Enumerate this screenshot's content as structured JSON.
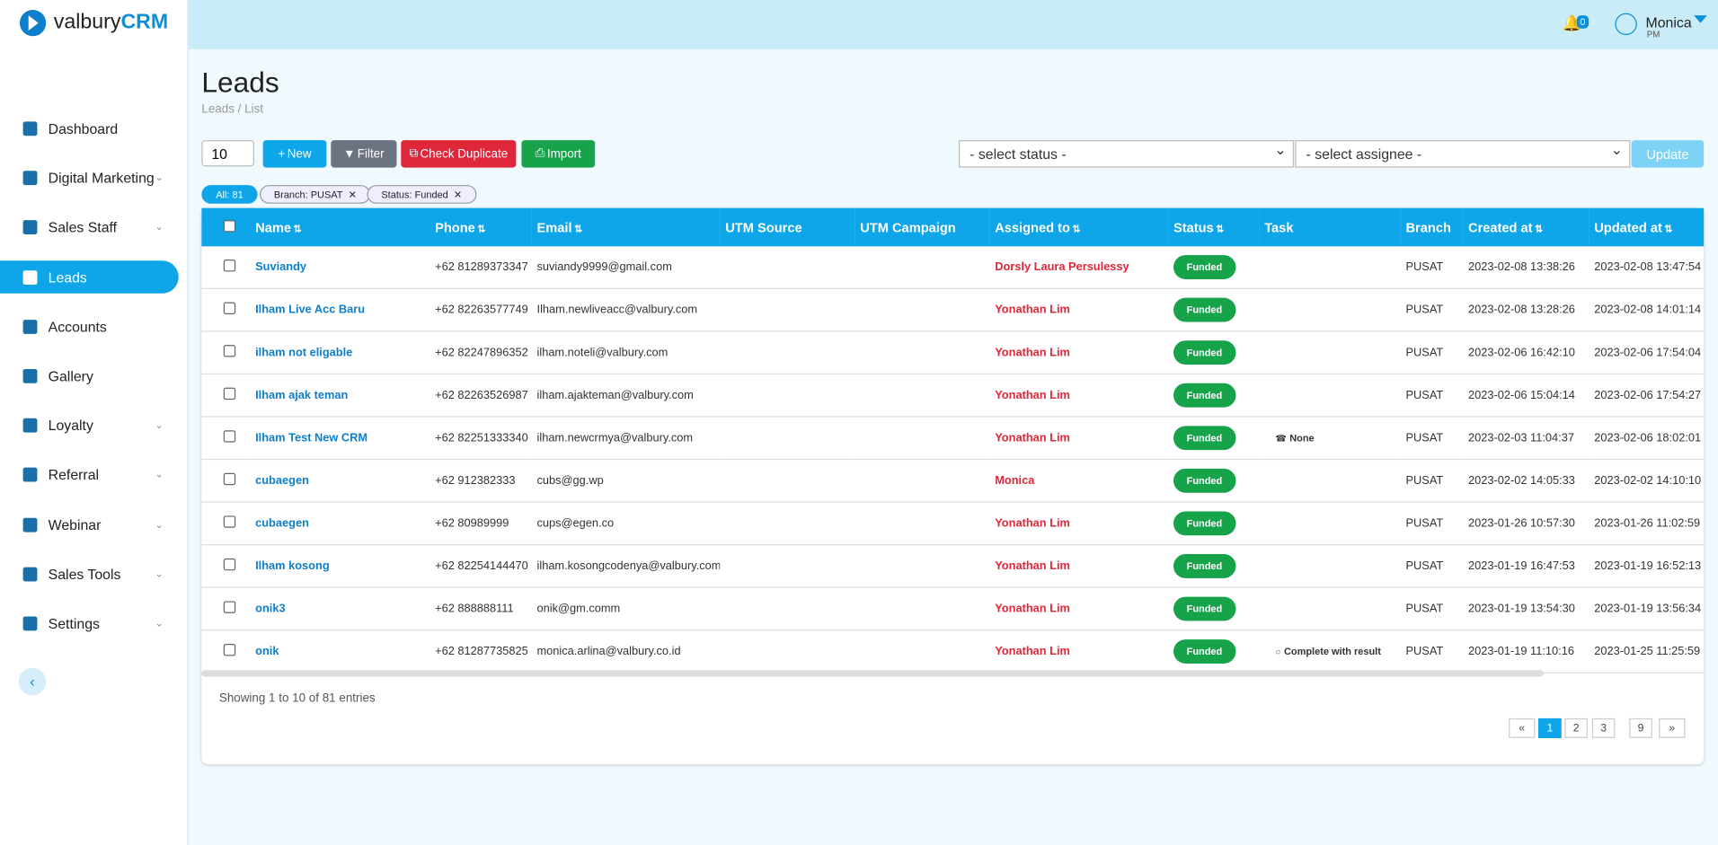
{
  "sidebar": {
    "logo": {
      "brand": "valbury",
      "product": "CRM"
    },
    "nav": [
      {
        "label": "Dashboard",
        "expandable": false,
        "active": false
      },
      {
        "label": "Digital Marketing",
        "expandable": true,
        "active": false
      },
      {
        "label": "Sales Staff",
        "expandable": true,
        "active": false
      },
      {
        "label": "Leads",
        "expandable": false,
        "active": true
      },
      {
        "label": "Accounts",
        "expandable": false,
        "active": false
      },
      {
        "label": "Gallery",
        "expandable": false,
        "active": false
      },
      {
        "label": "Loyalty",
        "expandable": true,
        "active": false
      },
      {
        "label": "Referral",
        "expandable": true,
        "active": false
      },
      {
        "label": "Webinar",
        "expandable": true,
        "active": false
      },
      {
        "label": "Sales Tools",
        "expandable": true,
        "active": false
      },
      {
        "label": "Settings",
        "expandable": true,
        "active": false
      }
    ]
  },
  "header": {
    "notifications": "0",
    "user": "Monica",
    "role": "PM"
  },
  "page": {
    "title": "Leads",
    "breadcrumb": "Leads / List"
  },
  "toolbar": {
    "page_size": "10",
    "buttons": [
      "New",
      "Filter",
      "Check Duplicate",
      "Import"
    ],
    "status_select": "- select status -",
    "assignee_select": "- select assignee -",
    "update": "Update"
  },
  "chips": [
    "All: 81",
    "Branch: PUSAT",
    "Status: Funded"
  ],
  "table": {
    "columns": [
      {
        "label": "Name",
        "sortable": true
      },
      {
        "label": "Phone",
        "sortable": true
      },
      {
        "label": "Email",
        "sortable": true
      },
      {
        "label": "UTM Source",
        "sortable": false
      },
      {
        "label": "UTM Campaign",
        "sortable": false
      },
      {
        "label": "Assigned to",
        "sortable": true
      },
      {
        "label": "Status",
        "sortable": true
      },
      {
        "label": "Task",
        "sortable": false
      },
      {
        "label": "Branch",
        "sortable": false
      },
      {
        "label": "Created at",
        "sortable": true
      },
      {
        "label": "Updated at",
        "sortable": true
      }
    ],
    "rows": [
      [
        "Suviandy",
        "+62 81289373347",
        "suviandy9999@gmail.com",
        null,
        null,
        "Dorsly Laura Persulessy",
        "Funded",
        null,
        "PUSAT",
        "2023-02-08 13:38:26",
        "2023-02-08 13:47:54"
      ],
      [
        "Ilham Live Acc Baru",
        "+62 82263577749",
        "Ilham.newliveacc@valbury.com",
        null,
        null,
        "Yonathan Lim",
        "Funded",
        null,
        "PUSAT",
        "2023-02-08 13:28:26",
        "2023-02-08 14:01:14"
      ],
      [
        "ilham not eligable",
        "+62 82247896352",
        "ilham.noteli@valbury.com",
        null,
        null,
        "Yonathan Lim",
        "Funded",
        null,
        "PUSAT",
        "2023-02-06 16:42:10",
        "2023-02-06 17:54:04"
      ],
      [
        "Ilham ajak teman",
        "+62 82263526987",
        "ilham.ajakteman@valbury.com",
        null,
        null,
        "Yonathan Lim",
        "Funded",
        null,
        "PUSAT",
        "2023-02-06 15:04:14",
        "2023-02-06 17:54:27"
      ],
      [
        "Ilham Test New CRM",
        "+62 82251333340",
        "ilham.newcrmya@valbury.com",
        null,
        null,
        "Yonathan Lim",
        "Funded",
        "None",
        "PUSAT",
        "2023-02-03 11:04:37",
        "2023-02-06 18:02:01"
      ],
      [
        "cubaegen",
        "+62 912382333",
        "cubs@gg.wp",
        null,
        null,
        "Monica",
        "Funded",
        null,
        "PUSAT",
        "2023-02-02 14:05:33",
        "2023-02-02 14:10:10"
      ],
      [
        "cubaegen",
        "+62 80989999",
        "cups@egen.co",
        null,
        null,
        "Yonathan Lim",
        "Funded",
        null,
        "PUSAT",
        "2023-01-26 10:57:30",
        "2023-01-26 11:02:59"
      ],
      [
        "Ilham kosong",
        "+62 82254144470",
        "ilham.kosongcodenya@valbury.com",
        null,
        null,
        "Yonathan Lim",
        "Funded",
        null,
        "PUSAT",
        "2023-01-19 16:47:53",
        "2023-01-19 16:52:13"
      ],
      [
        "onik3",
        "+62 888888111",
        "onik@gm.comm",
        null,
        null,
        "Yonathan Lim",
        "Funded",
        null,
        "PUSAT",
        "2023-01-19 13:54:30",
        "2023-01-19 13:56:34"
      ],
      [
        "onik",
        "+62 81287735825",
        "monica.arlina@valbury.co.id",
        null,
        null,
        "Yonathan Lim",
        "Funded",
        "Complete with result",
        "PUSAT",
        "2023-01-19 11:10:16",
        "2023-01-25 11:25:59"
      ]
    ]
  },
  "footer": {
    "info": "Showing 1 to 10 of 81 entries",
    "pages": [
      "«",
      "1",
      "2",
      "3",
      "9",
      "»"
    ],
    "current_page": "1"
  }
}
